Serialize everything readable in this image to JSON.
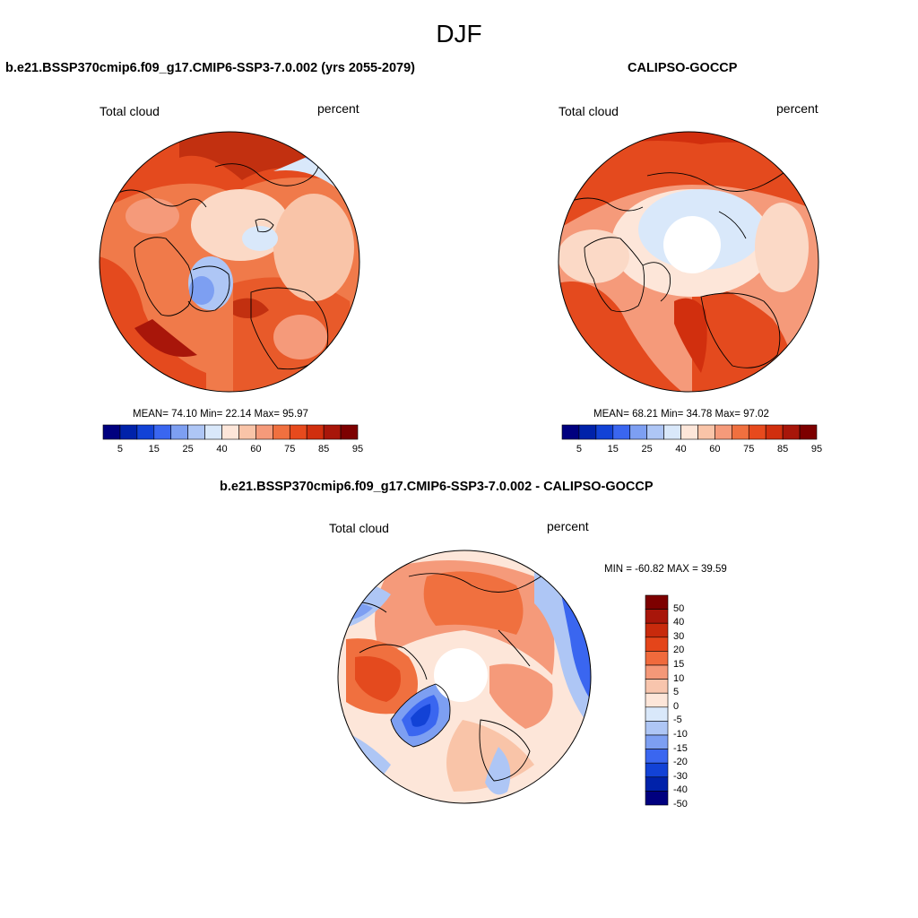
{
  "title": "DJF",
  "panels": [
    {
      "id": "model",
      "title": "b.e21.BSSP370cmip6.f09_g17.CMIP6-SSP3-7.0.002 (yrs 2055-2079)",
      "variable": "Total cloud",
      "units": "percent",
      "stats": "MEAN=  74.10  Min=  22.14  Max=  95.97",
      "colorbar_labels": [
        "5",
        "15",
        "25",
        "40",
        "60",
        "75",
        "85",
        "95"
      ]
    },
    {
      "id": "obs",
      "title": "CALIPSO-GOCCP",
      "variable": "Total cloud",
      "units": "percent",
      "stats": "MEAN=  68.21  Min=  34.78  Max=  97.02",
      "colorbar_labels": [
        "5",
        "15",
        "25",
        "40",
        "60",
        "75",
        "85",
        "95"
      ]
    },
    {
      "id": "diff",
      "title": "b.e21.BSSP370cmip6.f09_g17.CMIP6-SSP3-7.0.002 - CALIPSO-GOCCP",
      "variable": "Total cloud",
      "units": "percent",
      "stats": "MIN = -60.82 MAX =  39.59",
      "colorbar_labels": [
        "50",
        "40",
        "30",
        "20",
        "15",
        "10",
        "5",
        "0",
        "-5",
        "-10",
        "-15",
        "-20",
        "-30",
        "-40",
        "-50"
      ]
    }
  ],
  "colors": {
    "seq": [
      "#00007f",
      "#0022aa",
      "#1242d6",
      "#3a66f0",
      "#7d9ff2",
      "#aec6f5",
      "#d9e8fa",
      "#fde6d9",
      "#f9c4a8",
      "#f59a7a",
      "#f0703f",
      "#e74a1d",
      "#d12f0e",
      "#a8160a",
      "#7d0000"
    ],
    "diff": [
      "#7d0000",
      "#a8160a",
      "#c82a0c",
      "#e4451a",
      "#f06a3c",
      "#f49878",
      "#f8c5ad",
      "#fde6d9",
      "#d9e8fa",
      "#aec6f5",
      "#7d9ff2",
      "#3a66f0",
      "#1242d6",
      "#0022aa",
      "#00007f"
    ]
  }
}
